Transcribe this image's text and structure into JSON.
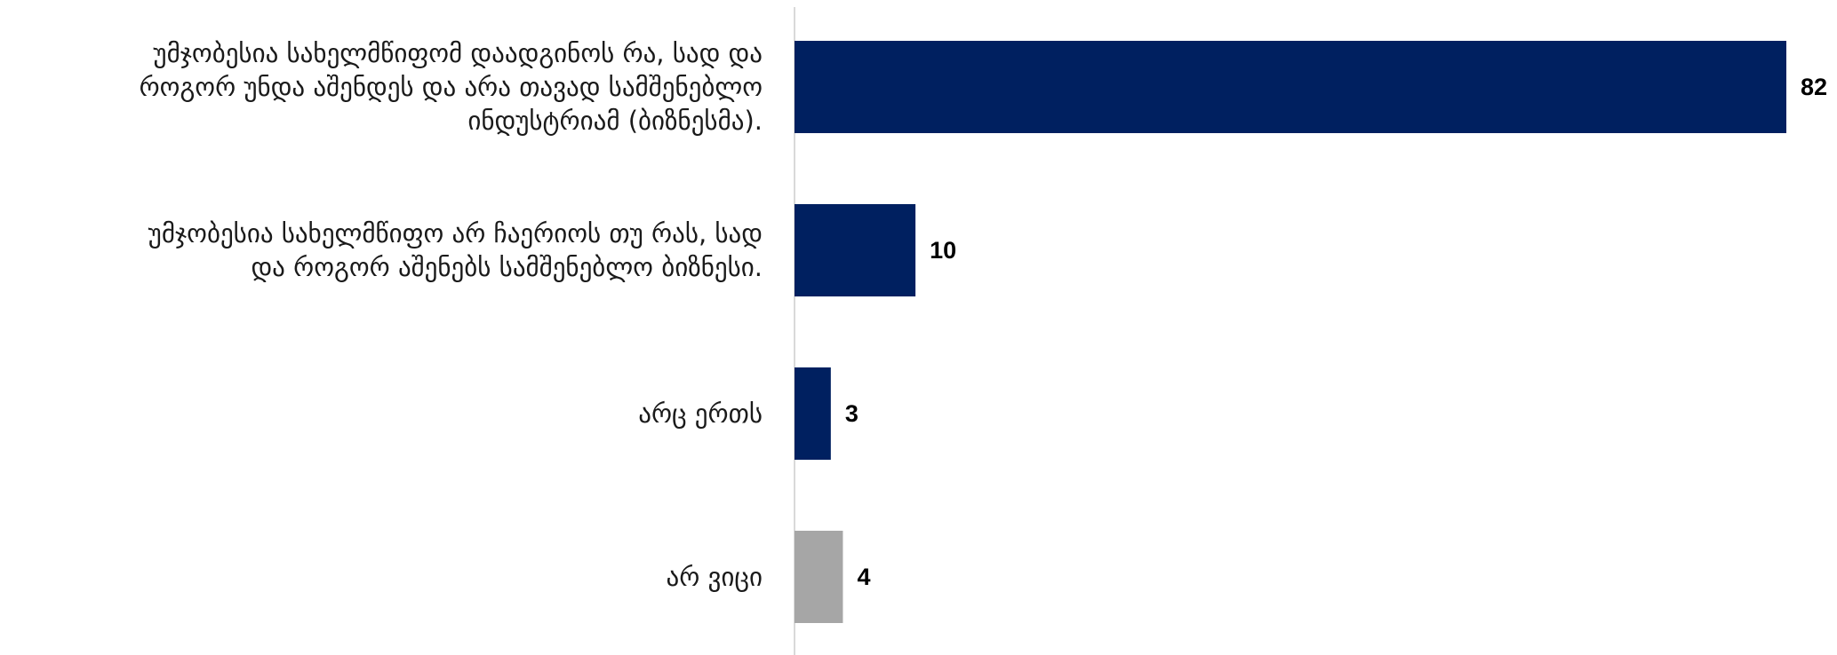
{
  "chart_data": {
    "type": "bar",
    "orientation": "horizontal",
    "categories": [
      [
        "უმჯობესია სახელმწიფომ დაადგინოს რა, სად და",
        "როგორ უნდა აშენდეს და არა თავად სამშენებლო",
        "ინდუსტრიამ (ბიზნესმა)."
      ],
      [
        "უმჯობესია სახელმწიფო არ ჩაერიოს თუ რას, სად",
        "და როგორ აშენებს სამშენებლო ბიზნესი."
      ],
      [
        "არც ერთს"
      ],
      [
        "არ ვიცი"
      ]
    ],
    "values": [
      82,
      10,
      3,
      4
    ],
    "value_labels": [
      "82",
      "10",
      "3",
      "4"
    ],
    "bar_colors": [
      "#002060",
      "#002060",
      "#002060",
      "#A6A6A6"
    ],
    "xlim": [
      0,
      85
    ],
    "title": "",
    "xlabel": "",
    "ylabel": "",
    "grid": false,
    "legend": "none",
    "axis_color": "#D9D9D9"
  }
}
